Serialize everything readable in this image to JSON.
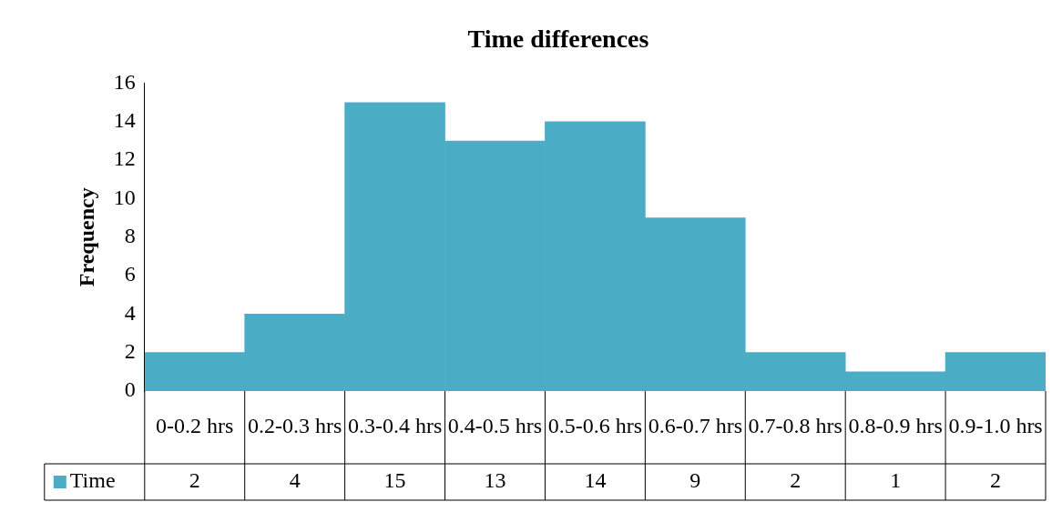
{
  "chart_data": {
    "type": "bar",
    "title": "Time differences",
    "ylabel": "Frequency",
    "categories": [
      "0-0.2 hrs",
      "0.2-0.3 hrs",
      "0.3-0.4 hrs",
      "0.4-0.5 hrs",
      "0.5-0.6 hrs",
      "0.6-0.7 hrs",
      "0.7-0.8 hrs",
      "0.8-0.9 hrs",
      "0.9-1.0 hrs"
    ],
    "series": [
      {
        "name": "Time",
        "color": "#4bacc6",
        "values": [
          2,
          4,
          15,
          13,
          14,
          9,
          2,
          1,
          2
        ]
      }
    ],
    "ylim": [
      0,
      16
    ],
    "yticks": [
      0,
      2,
      4,
      6,
      8,
      10,
      12,
      14,
      16
    ],
    "grid": false,
    "legend": "bottom",
    "data_labels": true
  }
}
